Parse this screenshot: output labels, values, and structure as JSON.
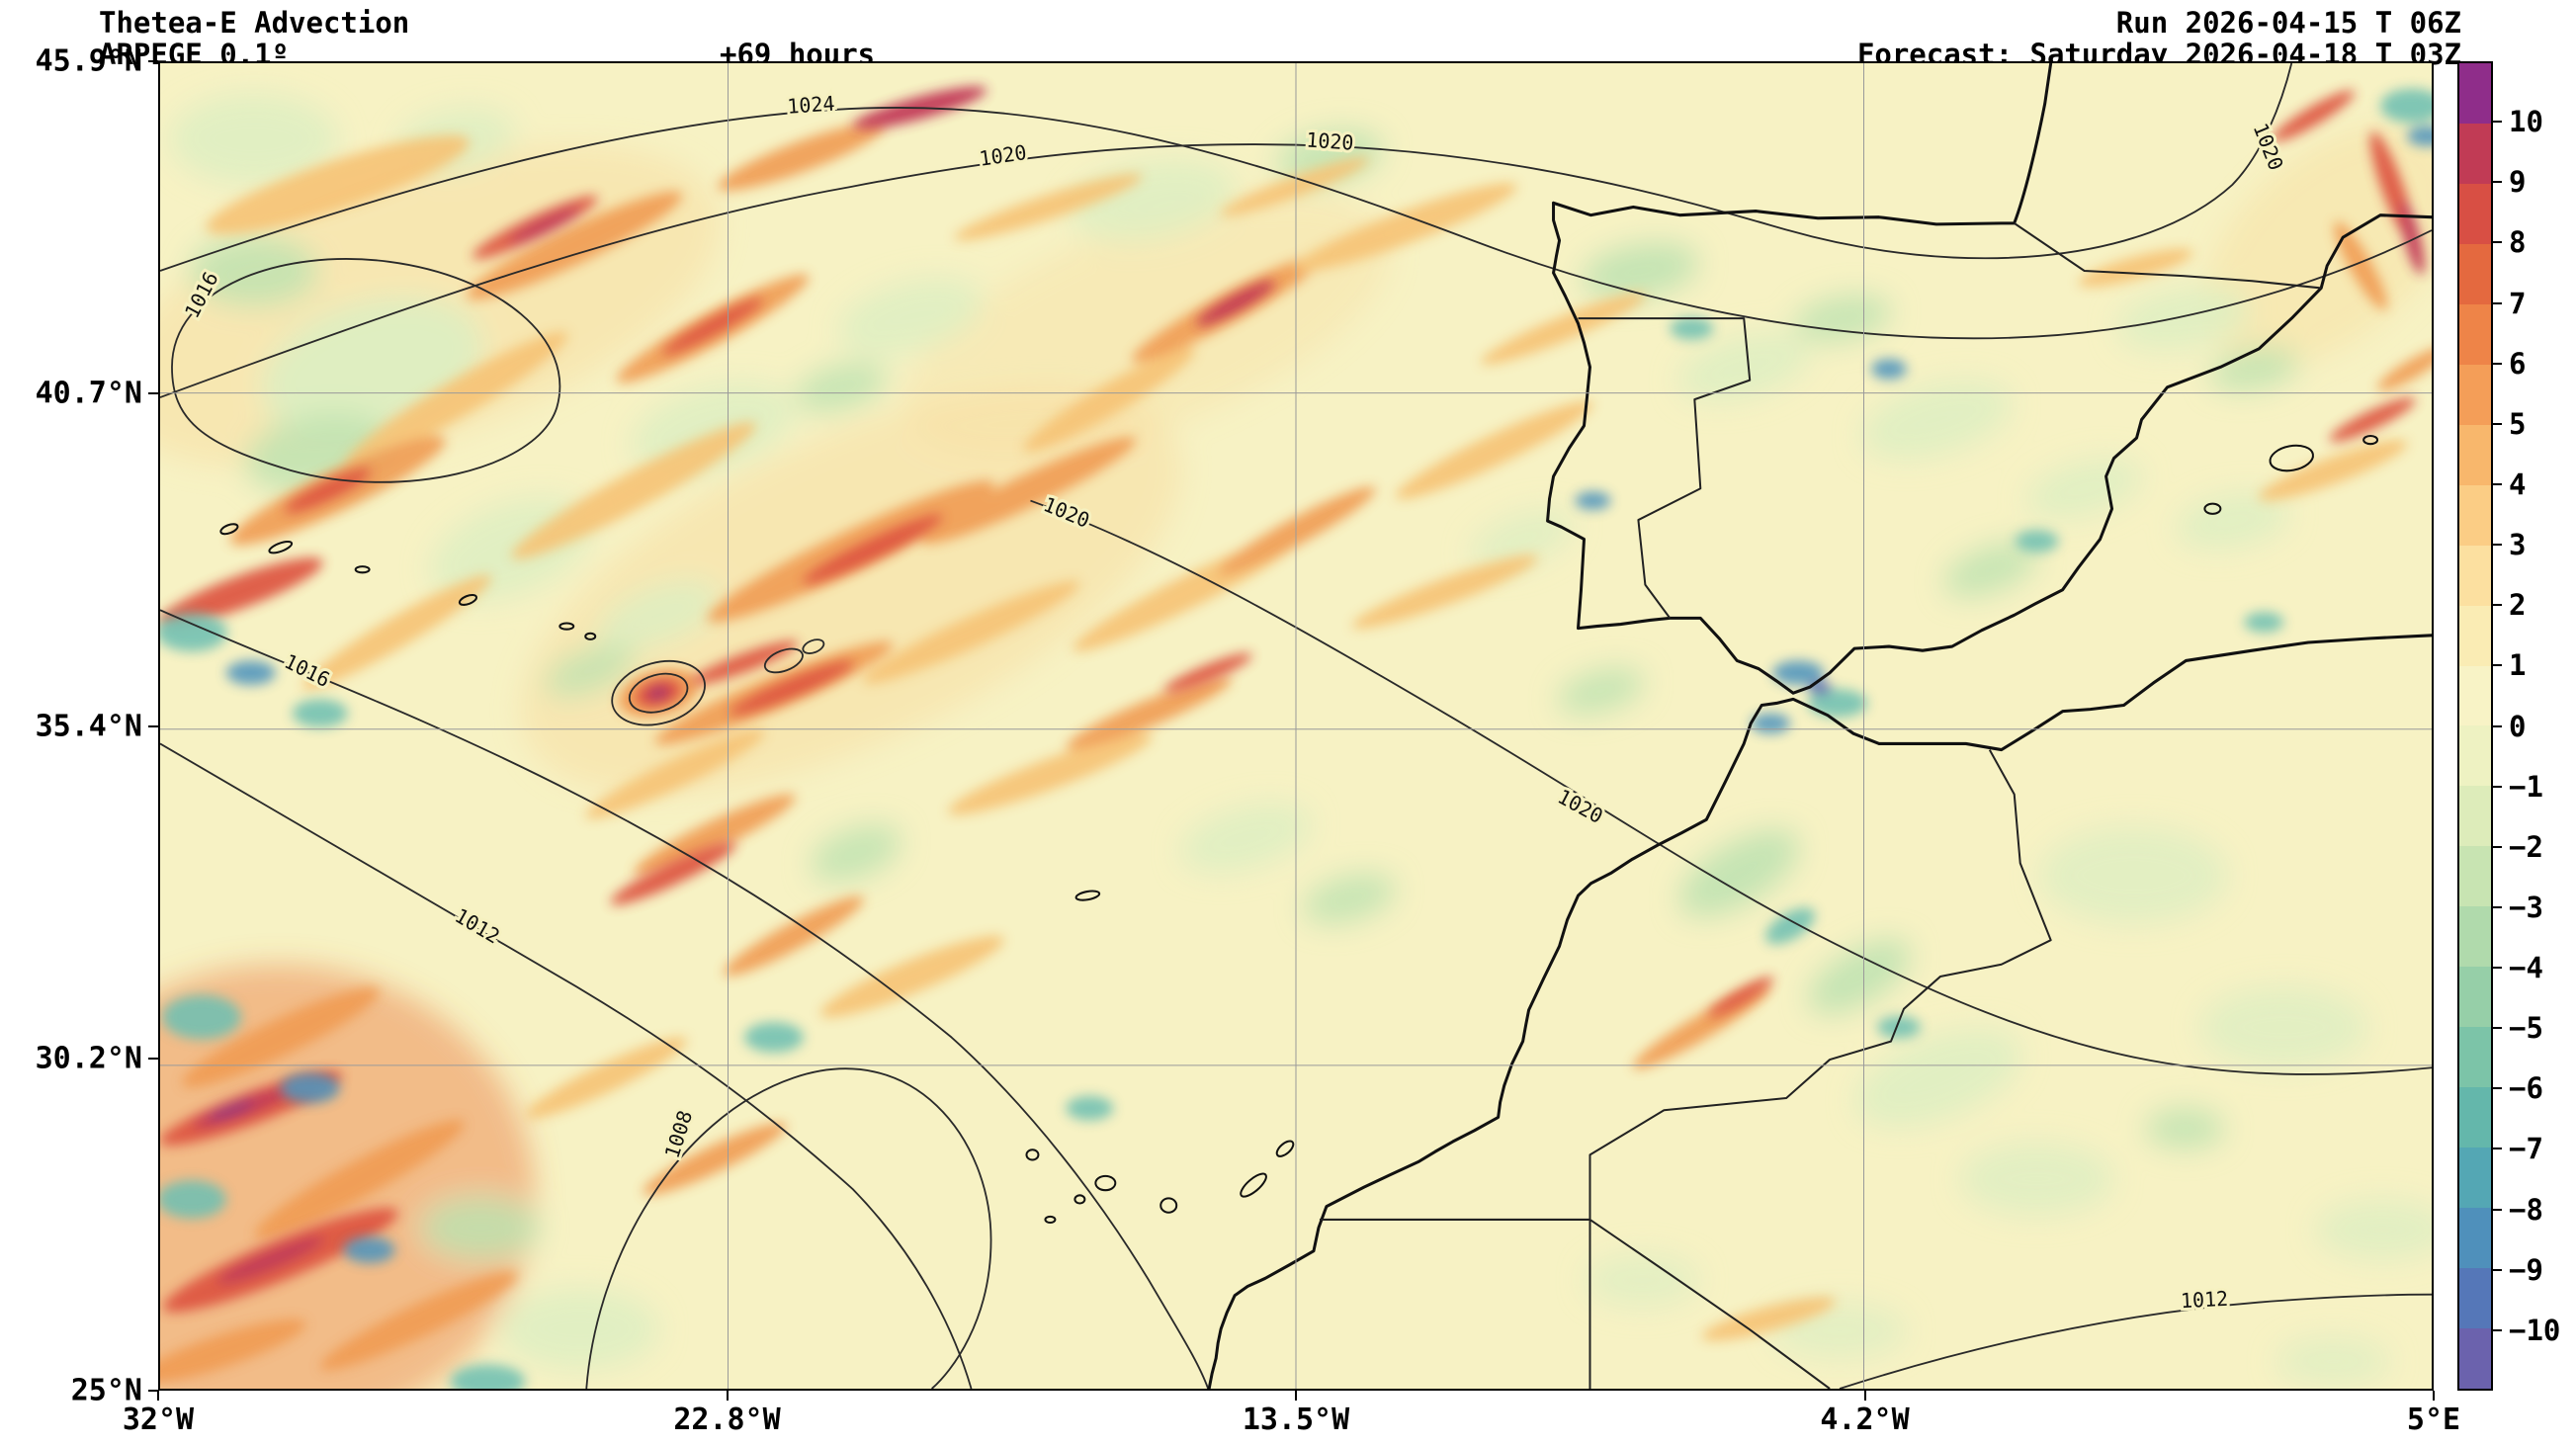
{
  "header": {
    "title": "Thetea-E Advection",
    "model": "ARPEGE 0.1º",
    "lead_time": "+69 hours",
    "run": "Run 2026-04-15 T 06Z",
    "forecast": "Forecast: Saturday 2026-04-18 T 03Z"
  },
  "chart_data": {
    "type": "heatmap",
    "title": "Thetea-E Advection",
    "model": "ARPEGE 0.1º",
    "lead_time_hours": 69,
    "run": "2026-04-15 T 06Z",
    "forecast_valid": "Saturday 2026-04-18 T 03Z",
    "x_axis": {
      "label_type": "longitude",
      "ticks": [
        "32°W",
        "22.8°W",
        "13.5°W",
        "4.2°W",
        "5°E"
      ],
      "range_deg": [
        -32,
        5
      ]
    },
    "y_axis": {
      "label_type": "latitude",
      "ticks": [
        "45.9°N",
        "40.7°N",
        "35.4°N",
        "30.2°N",
        "25°N"
      ],
      "range_deg": [
        45.9,
        25
      ]
    },
    "colorbar": {
      "tick_labels": [
        "10",
        "9",
        "8",
        "7",
        "6",
        "5",
        "4",
        "3",
        "2",
        "1",
        "0",
        "−1",
        "−2",
        "−3",
        "−4",
        "−5",
        "−6",
        "−7",
        "−8",
        "−9",
        "−10"
      ],
      "tick_values": [
        10,
        9,
        8,
        7,
        6,
        5,
        4,
        3,
        2,
        1,
        0,
        -1,
        -2,
        -3,
        -4,
        -5,
        -6,
        -7,
        -8,
        -9,
        -10
      ],
      "colors_top_to_bottom": [
        "#8f2d8a",
        "#c13b55",
        "#d84f44",
        "#e4693f",
        "#ee8448",
        "#f49e58",
        "#f8b76c",
        "#fbcd85",
        "#fce0a0",
        "#faecb4",
        "#f8f3c6",
        "#eef2c2",
        "#ddecba",
        "#c8e4b2",
        "#b0daac",
        "#96cfa8",
        "#7cc4a8",
        "#64b7ab",
        "#54a7b4",
        "#4f90bb",
        "#5577b8",
        "#6b62ad"
      ],
      "grid": true,
      "legend_position": "right"
    },
    "isobars": {
      "values_shown": [
        "1024",
        "1020",
        "1016",
        "1012",
        "1008"
      ],
      "labels": [
        "1016",
        "1024",
        "1020",
        "1020",
        "1020",
        "1016",
        "1012",
        "1008",
        "1020",
        "1012",
        "1020"
      ]
    }
  }
}
